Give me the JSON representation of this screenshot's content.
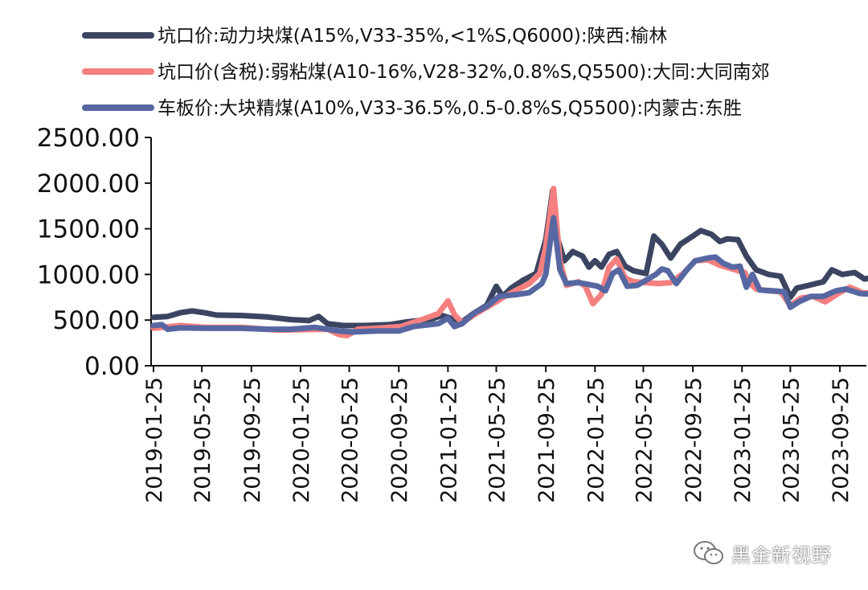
{
  "chart_data": {
    "type": "line",
    "ylim": [
      0,
      2500
    ],
    "y_ticks": [
      "0.00",
      "500.00",
      "1000.00",
      "1500.00",
      "2000.00",
      "2500.00"
    ],
    "x_ticks": [
      "2019-01-25",
      "2019-05-25",
      "2019-09-25",
      "2020-01-25",
      "2020-05-25",
      "2020-09-25",
      "2021-01-25",
      "2021-05-25",
      "2021-09-25",
      "2022-01-25",
      "2022-05-25",
      "2022-09-25",
      "2023-01-25",
      "2023-05-25",
      "2023-09-25"
    ],
    "x_range": [
      "2019-01-25",
      "2023-12-31"
    ],
    "legend_position": "top",
    "grid": false,
    "series": [
      {
        "name": "坑口价:动力块煤(A15%,V33-35%,<1%S,Q6000):陕西:榆林",
        "color": "#3b4561",
        "points": [
          [
            "2019-01-25",
            530
          ],
          [
            "2019-03-01",
            540
          ],
          [
            "2019-04-01",
            580
          ],
          [
            "2019-05-01",
            600
          ],
          [
            "2019-06-01",
            580
          ],
          [
            "2019-07-01",
            555
          ],
          [
            "2019-09-01",
            550
          ],
          [
            "2019-11-01",
            535
          ],
          [
            "2020-01-01",
            505
          ],
          [
            "2020-02-15",
            495
          ],
          [
            "2020-03-10",
            540
          ],
          [
            "2020-04-01",
            460
          ],
          [
            "2020-05-10",
            440
          ],
          [
            "2020-07-01",
            440
          ],
          [
            "2020-09-01",
            450
          ],
          [
            "2020-10-15",
            480
          ],
          [
            "2020-12-15",
            510
          ],
          [
            "2021-01-10",
            550
          ],
          [
            "2021-02-01",
            520
          ],
          [
            "2021-03-01",
            480
          ],
          [
            "2021-04-01",
            580
          ],
          [
            "2021-05-01",
            660
          ],
          [
            "2021-05-25",
            870
          ],
          [
            "2021-06-10",
            760
          ],
          [
            "2021-07-01",
            850
          ],
          [
            "2021-08-01",
            940
          ],
          [
            "2021-09-01",
            1010
          ],
          [
            "2021-09-25",
            1380
          ],
          [
            "2021-10-12",
            1920
          ],
          [
            "2021-10-25",
            1380
          ],
          [
            "2021-11-10",
            1150
          ],
          [
            "2021-12-01",
            1250
          ],
          [
            "2021-12-25",
            1200
          ],
          [
            "2022-01-10",
            1080
          ],
          [
            "2022-01-25",
            1150
          ],
          [
            "2022-02-10",
            1080
          ],
          [
            "2022-03-01",
            1220
          ],
          [
            "2022-03-20",
            1250
          ],
          [
            "2022-04-10",
            1090
          ],
          [
            "2022-05-01",
            1040
          ],
          [
            "2022-06-01",
            1010
          ],
          [
            "2022-06-20",
            1420
          ],
          [
            "2022-07-10",
            1330
          ],
          [
            "2022-08-01",
            1180
          ],
          [
            "2022-08-25",
            1330
          ],
          [
            "2022-09-25",
            1420
          ],
          [
            "2022-10-15",
            1480
          ],
          [
            "2022-11-10",
            1440
          ],
          [
            "2022-12-01",
            1360
          ],
          [
            "2022-12-20",
            1390
          ],
          [
            "2023-01-15",
            1380
          ],
          [
            "2023-02-05",
            1200
          ],
          [
            "2023-03-01",
            1050
          ],
          [
            "2023-04-01",
            1000
          ],
          [
            "2023-05-01",
            980
          ],
          [
            "2023-05-25",
            750
          ],
          [
            "2023-06-10",
            850
          ],
          [
            "2023-07-10",
            880
          ],
          [
            "2023-08-15",
            920
          ],
          [
            "2023-09-05",
            1050
          ],
          [
            "2023-10-01",
            1000
          ],
          [
            "2023-11-01",
            1020
          ],
          [
            "2023-11-25",
            950
          ],
          [
            "2023-12-31",
            980
          ]
        ]
      },
      {
        "name": "坑口价(含税):弱粘煤(A10-16%,V28-32%,0.8%S,Q5500):大同:大同南郊",
        "color": "#f57f7f",
        "points": [
          [
            "2019-01-25",
            410
          ],
          [
            "2019-04-01",
            440
          ],
          [
            "2019-06-01",
            420
          ],
          [
            "2019-09-01",
            420
          ],
          [
            "2019-12-01",
            390
          ],
          [
            "2020-02-01",
            395
          ],
          [
            "2020-04-01",
            400
          ],
          [
            "2020-05-01",
            340
          ],
          [
            "2020-05-20",
            330
          ],
          [
            "2020-06-15",
            400
          ],
          [
            "2020-08-01",
            410
          ],
          [
            "2020-10-01",
            430
          ],
          [
            "2020-12-01",
            520
          ],
          [
            "2021-01-01",
            570
          ],
          [
            "2021-01-25",
            710
          ],
          [
            "2021-02-10",
            560
          ],
          [
            "2021-03-01",
            470
          ],
          [
            "2021-04-01",
            560
          ],
          [
            "2021-05-01",
            640
          ],
          [
            "2021-05-25",
            700
          ],
          [
            "2021-06-15",
            760
          ],
          [
            "2021-07-15",
            830
          ],
          [
            "2021-08-15",
            900
          ],
          [
            "2021-09-10",
            1010
          ],
          [
            "2021-09-25",
            1300
          ],
          [
            "2021-10-14",
            1940
          ],
          [
            "2021-10-30",
            1150
          ],
          [
            "2021-11-15",
            880
          ],
          [
            "2021-12-15",
            920
          ],
          [
            "2022-01-01",
            870
          ],
          [
            "2022-01-20",
            680
          ],
          [
            "2022-02-10",
            780
          ],
          [
            "2022-03-01",
            1080
          ],
          [
            "2022-03-20",
            1170
          ],
          [
            "2022-04-10",
            960
          ],
          [
            "2022-05-01",
            920
          ],
          [
            "2022-07-01",
            900
          ],
          [
            "2022-08-01",
            910
          ],
          [
            "2022-09-01",
            1010
          ],
          [
            "2022-10-01",
            1150
          ],
          [
            "2022-11-01",
            1160
          ],
          [
            "2022-12-01",
            1100
          ],
          [
            "2023-01-01",
            1060
          ],
          [
            "2023-02-01",
            1020
          ],
          [
            "2023-02-15",
            900
          ],
          [
            "2023-03-01",
            840
          ],
          [
            "2023-04-01",
            820
          ],
          [
            "2023-05-01",
            810
          ],
          [
            "2023-05-25",
            660
          ],
          [
            "2023-06-20",
            740
          ],
          [
            "2023-07-20",
            760
          ],
          [
            "2023-08-20",
            700
          ],
          [
            "2023-09-20",
            790
          ],
          [
            "2023-10-20",
            860
          ],
          [
            "2023-11-20",
            800
          ],
          [
            "2023-12-31",
            790
          ]
        ]
      },
      {
        "name": "车板价:大块精煤(A10%,V33-36.5%,0.5-0.8%S,Q5500):内蒙古:东胜",
        "color": "#5767a2",
        "points": [
          [
            "2019-01-25",
            440
          ],
          [
            "2019-02-15",
            450
          ],
          [
            "2019-03-01",
            400
          ],
          [
            "2019-04-01",
            415
          ],
          [
            "2019-06-01",
            410
          ],
          [
            "2019-09-01",
            410
          ],
          [
            "2019-11-01",
            400
          ],
          [
            "2020-01-01",
            400
          ],
          [
            "2020-03-01",
            420
          ],
          [
            "2020-04-01",
            400
          ],
          [
            "2020-05-01",
            380
          ],
          [
            "2020-06-01",
            370
          ],
          [
            "2020-08-01",
            380
          ],
          [
            "2020-09-25",
            380
          ],
          [
            "2020-11-01",
            430
          ],
          [
            "2021-01-01",
            460
          ],
          [
            "2021-01-25",
            520
          ],
          [
            "2021-02-10",
            430
          ],
          [
            "2021-03-01",
            460
          ],
          [
            "2021-04-01",
            580
          ],
          [
            "2021-05-01",
            650
          ],
          [
            "2021-06-01",
            760
          ],
          [
            "2021-07-15",
            780
          ],
          [
            "2021-08-15",
            800
          ],
          [
            "2021-09-15",
            900
          ],
          [
            "2021-09-25",
            1000
          ],
          [
            "2021-10-14",
            1620
          ],
          [
            "2021-10-30",
            1050
          ],
          [
            "2021-11-15",
            900
          ],
          [
            "2021-12-15",
            910
          ],
          [
            "2022-01-10",
            890
          ],
          [
            "2022-02-01",
            870
          ],
          [
            "2022-02-20",
            820
          ],
          [
            "2022-03-10",
            1010
          ],
          [
            "2022-03-25",
            1050
          ],
          [
            "2022-04-15",
            870
          ],
          [
            "2022-05-10",
            880
          ],
          [
            "2022-06-10",
            960
          ],
          [
            "2022-06-25",
            1000
          ],
          [
            "2022-07-10",
            1060
          ],
          [
            "2022-07-25",
            1040
          ],
          [
            "2022-08-15",
            900
          ],
          [
            "2022-09-10",
            1050
          ],
          [
            "2022-10-01",
            1150
          ],
          [
            "2022-11-01",
            1180
          ],
          [
            "2022-11-20",
            1190
          ],
          [
            "2022-12-10",
            1120
          ],
          [
            "2023-01-01",
            1080
          ],
          [
            "2023-01-20",
            1090
          ],
          [
            "2023-02-05",
            860
          ],
          [
            "2023-02-20",
            1000
          ],
          [
            "2023-03-10",
            830
          ],
          [
            "2023-04-10",
            820
          ],
          [
            "2023-05-10",
            810
          ],
          [
            "2023-05-25",
            640
          ],
          [
            "2023-06-15",
            700
          ],
          [
            "2023-07-15",
            760
          ],
          [
            "2023-08-15",
            760
          ],
          [
            "2023-09-15",
            820
          ],
          [
            "2023-10-10",
            840
          ],
          [
            "2023-11-15",
            790
          ],
          [
            "2023-12-31",
            780
          ]
        ]
      }
    ]
  },
  "watermark": {
    "icon": "wechat-icon",
    "text": "黑金新视野"
  }
}
